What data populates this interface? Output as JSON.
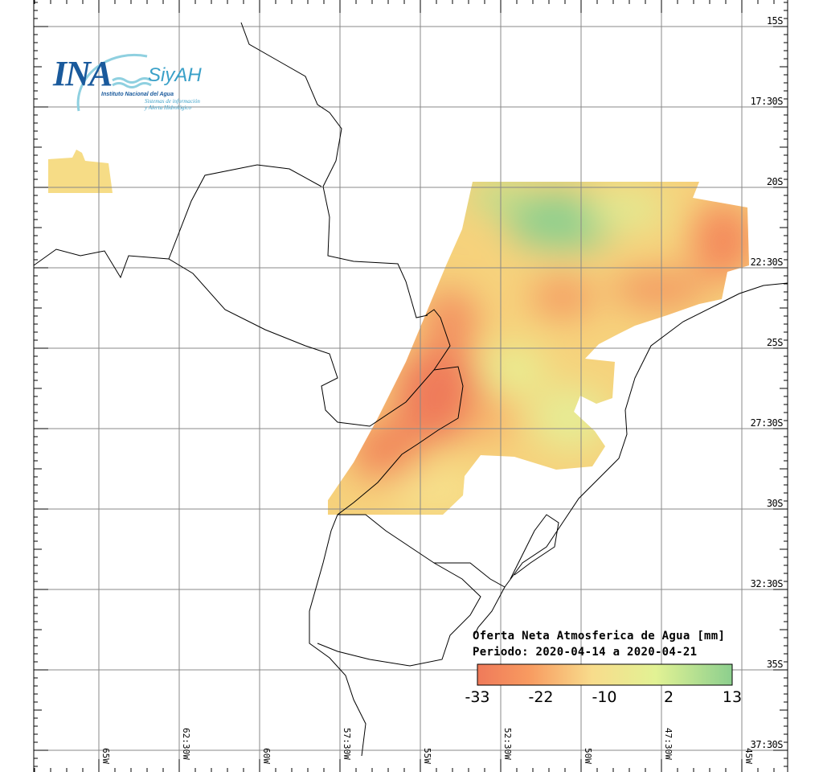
{
  "logo": {
    "acronym": "INA",
    "system": "SiyAH",
    "institute": "Instituto Nacional del Agua",
    "system_line1": "Sistemas de información",
    "system_line2": "y Alerta Hidrológico"
  },
  "legend": {
    "title": "Oferta Neta Atmosferica de Agua [mm]",
    "period": "Periodo: 2020-04-14 a 2020-04-21",
    "ticks": [
      "-33",
      "-22",
      "-10",
      "2",
      "13"
    ],
    "colors": [
      "#ef7a5a",
      "#f89a60",
      "#f8dc8c",
      "#e2f294",
      "#8ccf8e"
    ]
  },
  "axes": {
    "lat_labels": [
      "15S",
      "17:30S",
      "20S",
      "22:30S",
      "25S",
      "27:30S",
      "30S",
      "32:30S",
      "35S",
      "37:30S"
    ],
    "lon_labels": [
      "65W",
      "62:30W",
      "60W",
      "57:30W",
      "55W",
      "52:30W",
      "50W",
      "47:30W",
      "45W"
    ]
  }
}
